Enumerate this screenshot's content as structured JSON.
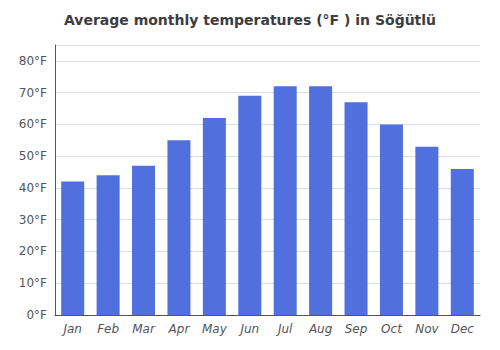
{
  "chart_data": {
    "type": "bar",
    "title": "Average monthly temperatures (°F ) in Söğütlü",
    "categories": [
      "Jan",
      "Feb",
      "Mar",
      "Apr",
      "May",
      "Jun",
      "Jul",
      "Aug",
      "Sep",
      "Oct",
      "Nov",
      "Dec"
    ],
    "values": [
      42,
      44,
      47,
      55,
      62,
      69,
      72,
      72,
      67,
      60,
      53,
      46
    ],
    "ylim": [
      0,
      85
    ],
    "yticks": [
      {
        "value": 0,
        "label": "0°F"
      },
      {
        "value": 10,
        "label": "10°F"
      },
      {
        "value": 20,
        "label": "20°F"
      },
      {
        "value": 30,
        "label": "30°F"
      },
      {
        "value": 40,
        "label": "40°F"
      },
      {
        "value": 50,
        "label": "50°F"
      },
      {
        "value": 60,
        "label": "60°F"
      },
      {
        "value": 70,
        "label": "70°F"
      },
      {
        "value": 80,
        "label": "80°F"
      }
    ],
    "grid": true
  }
}
